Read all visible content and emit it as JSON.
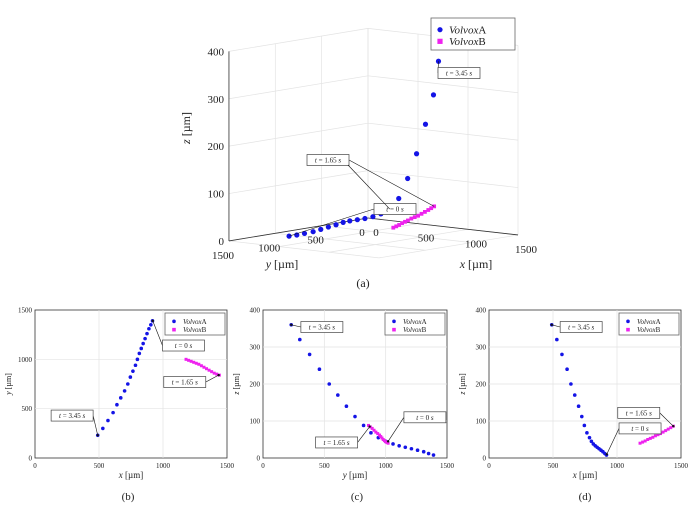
{
  "colors": {
    "volvoxA": "#1414e6",
    "volvoxB": "#ee22ee",
    "grid": "#e3e3e3",
    "axis": "#333333"
  },
  "legend": {
    "italic": "Volvox",
    "a": "A",
    "b": "B"
  },
  "units": {
    "s": "s"
  },
  "chart_data": [
    {
      "panel": "(a)",
      "type": "scatter3d",
      "xlabel_var": "x",
      "xlabel_unit": "[µm]",
      "ylabel_var": "y",
      "ylabel_unit": "[µm]",
      "zlabel_var": "z",
      "zlabel_unit": "[µm]",
      "xlim": [
        0,
        1500
      ],
      "ylim": [
        0,
        1500
      ],
      "zlim": [
        0,
        400
      ],
      "xticks": [
        "0",
        "500",
        "1000",
        "1500"
      ],
      "yticks": [
        "1500",
        "1000",
        "500",
        "0"
      ],
      "zticks": [
        "0",
        "100",
        "200",
        "300",
        "400"
      ],
      "legend_position": "top-right",
      "grid": true,
      "series": [
        {
          "name": "A",
          "x": [
            490,
            530,
            570,
            610,
            640,
            670,
            700,
            725,
            745,
            765,
            785,
            800,
            815,
            830,
            845,
            860,
            875,
            890,
            905,
            918
          ],
          "y": [
            1380,
            1340,
            1300,
            1250,
            1200,
            1150,
            1100,
            1050,
            1000,
            940,
            880,
            810,
            740,
            660,
            580,
            500,
            420,
            340,
            270,
            230
          ],
          "z": [
            18,
            20,
            23,
            26,
            30,
            34,
            38,
            42,
            44,
            45,
            46,
            48,
            52,
            60,
            80,
            120,
            170,
            230,
            290,
            360
          ]
        },
        {
          "name": "B",
          "x": [
            1180,
            1200,
            1220,
            1240,
            1260,
            1280,
            1300,
            1320,
            1340,
            1360,
            1380,
            1400,
            1420,
            1440
          ],
          "y": [
            1000,
            990,
            980,
            970,
            960,
            950,
            935,
            920,
            905,
            890,
            875,
            860,
            850,
            840
          ],
          "z": [
            40,
            43,
            46,
            50,
            53,
            56,
            60,
            63,
            66,
            70,
            74,
            78,
            82,
            86
          ]
        }
      ],
      "annotations": [
        {
          "time": "3.45",
          "series": "A",
          "index": 19
        },
        {
          "time": "1.65",
          "series": "B",
          "index": 13
        },
        {
          "time": "0",
          "series": "A",
          "index": 0
        }
      ]
    },
    {
      "panel": "(b)",
      "type": "scatter",
      "xlabel_var": "x",
      "xlabel_unit": "[µm]",
      "ylabel_var": "y",
      "ylabel_unit": "[µm]",
      "xlim": [
        0,
        1500
      ],
      "ylim": [
        0,
        1500
      ],
      "xticks": [
        "0",
        "500",
        "1000",
        "1500"
      ],
      "yticks": [
        "0",
        "500",
        "1000",
        "1500"
      ],
      "legend_position": "top-right",
      "grid": true,
      "series": [
        {
          "name": "A",
          "x": [
            490,
            530,
            570,
            610,
            640,
            670,
            700,
            725,
            745,
            765,
            785,
            800,
            815,
            830,
            845,
            860,
            875,
            890,
            905,
            918
          ],
          "y": [
            230,
            300,
            380,
            460,
            540,
            610,
            680,
            750,
            820,
            880,
            940,
            1000,
            1060,
            1110,
            1160,
            1210,
            1260,
            1310,
            1350,
            1390
          ]
        },
        {
          "name": "B",
          "x": [
            1180,
            1200,
            1220,
            1240,
            1260,
            1280,
            1300,
            1320,
            1340,
            1360,
            1380,
            1400,
            1420,
            1440
          ],
          "y": [
            1000,
            990,
            980,
            970,
            960,
            950,
            935,
            920,
            905,
            890,
            875,
            860,
            850,
            840
          ]
        }
      ],
      "annotations": [
        {
          "time": "3.45",
          "x": 490,
          "y": 230,
          "lx": 290,
          "ly": 430
        },
        {
          "time": "0",
          "x": 920,
          "y": 1390,
          "lx": 1160,
          "ly": 1140
        },
        {
          "time": "1.65",
          "x": 1435,
          "y": 840,
          "lx": 1170,
          "ly": 770
        }
      ]
    },
    {
      "panel": "(c)",
      "type": "scatter",
      "xlabel_var": "y",
      "xlabel_unit": "[µm]",
      "ylabel_var": "z",
      "ylabel_unit": "[µm]",
      "xlim": [
        0,
        1500
      ],
      "ylim": [
        0,
        400
      ],
      "xticks": [
        "0",
        "500",
        "1000",
        "1500"
      ],
      "yticks": [
        "0",
        "100",
        "200",
        "300",
        "400"
      ],
      "legend_position": "top-right",
      "grid": true,
      "series": [
        {
          "name": "A",
          "x": [
            230,
            300,
            380,
            460,
            540,
            610,
            680,
            750,
            820,
            880,
            940,
            1000,
            1060,
            1110,
            1160,
            1210,
            1260,
            1310,
            1350,
            1390
          ],
          "y": [
            360,
            320,
            280,
            240,
            200,
            170,
            140,
            112,
            88,
            68,
            55,
            45,
            38,
            33,
            29,
            25,
            21,
            17,
            12,
            8
          ]
        },
        {
          "name": "B",
          "x": [
            860,
            875,
            890,
            905,
            920,
            935,
            950,
            960,
            970,
            980,
            990,
            1000,
            1010,
            1020
          ],
          "y": [
            88,
            84,
            80,
            75,
            70,
            66,
            62,
            58,
            54,
            50,
            47,
            44,
            42,
            40
          ]
        }
      ],
      "annotations": [
        {
          "time": "3.45",
          "x": 230,
          "y": 360,
          "lx": 480,
          "ly": 354
        },
        {
          "time": "1.65",
          "x": 870,
          "y": 85,
          "lx": 600,
          "ly": 42
        },
        {
          "time": "0",
          "x": 1020,
          "y": 45,
          "lx": 1320,
          "ly": 110
        }
      ]
    },
    {
      "panel": "(d)",
      "type": "scatter",
      "xlabel_var": "x",
      "xlabel_unit": "[µm]",
      "ylabel_var": "z",
      "ylabel_unit": "[µm]",
      "xlim": [
        0,
        1500
      ],
      "ylim": [
        0,
        400
      ],
      "xticks": [
        "0",
        "500",
        "1000",
        "1500"
      ],
      "yticks": [
        "0",
        "100",
        "200",
        "300",
        "400"
      ],
      "legend_position": "top-right",
      "grid": true,
      "series": [
        {
          "name": "A",
          "x": [
            490,
            530,
            570,
            610,
            640,
            670,
            700,
            725,
            745,
            765,
            785,
            800,
            815,
            830,
            845,
            860,
            875,
            890,
            905,
            918
          ],
          "y": [
            360,
            320,
            280,
            240,
            200,
            170,
            140,
            112,
            88,
            68,
            55,
            45,
            38,
            33,
            29,
            25,
            21,
            17,
            12,
            8
          ]
        },
        {
          "name": "B",
          "x": [
            1180,
            1200,
            1220,
            1240,
            1260,
            1280,
            1300,
            1320,
            1340,
            1360,
            1380,
            1400,
            1420,
            1440
          ],
          "y": [
            40,
            43,
            46,
            50,
            53,
            56,
            60,
            63,
            66,
            70,
            74,
            78,
            82,
            86
          ]
        }
      ],
      "annotations": [
        {
          "time": "3.45",
          "x": 490,
          "y": 360,
          "lx": 720,
          "ly": 354
        },
        {
          "time": "1.65",
          "x": 1440,
          "y": 86,
          "lx": 1170,
          "ly": 122
        },
        {
          "time": "0",
          "x": 920,
          "y": 10,
          "lx": 1180,
          "ly": 80
        }
      ]
    }
  ]
}
